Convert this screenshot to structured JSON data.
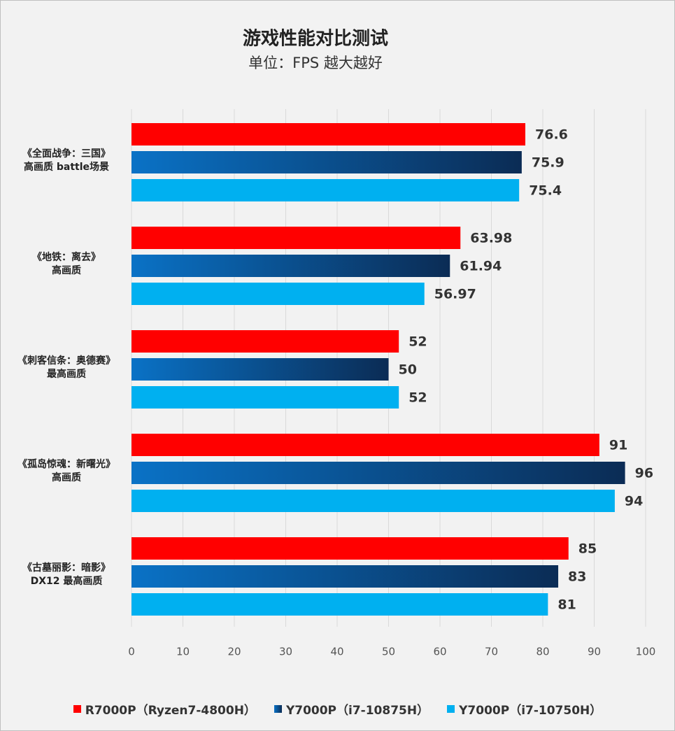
{
  "chart_data": {
    "type": "barh",
    "title": "游戏性能对比测试",
    "subtitle": "单位：FPS 越大越好",
    "categories": [
      "《全面战争：三国》\n高画质 battle场景",
      "《地铁：离去》\n高画质",
      "《刺客信条：奥德赛》\n最高画质",
      "《孤岛惊魂：新曙光》\n高画质",
      "《古墓丽影：暗影》\nDX12 最高画质"
    ],
    "series": [
      {
        "name": "R7000P（Ryzen7-4800H）",
        "color": "#ff0000",
        "values": [
          76.6,
          63.98,
          52,
          91,
          85
        ]
      },
      {
        "name": "Y7000P（i7-10875H）",
        "color": "#0a72c6",
        "gradient_end": "#0b2c55",
        "values": [
          75.9,
          61.94,
          50,
          96,
          83
        ]
      },
      {
        "name": "Y7000P（i7-10750H）",
        "color": "#00b0f0",
        "values": [
          75.4,
          56.97,
          52,
          94,
          81
        ]
      }
    ],
    "xlim": [
      0,
      100
    ],
    "xticks": [
      0,
      10,
      20,
      30,
      40,
      50,
      60,
      70,
      80,
      90,
      100
    ],
    "grid": true
  }
}
